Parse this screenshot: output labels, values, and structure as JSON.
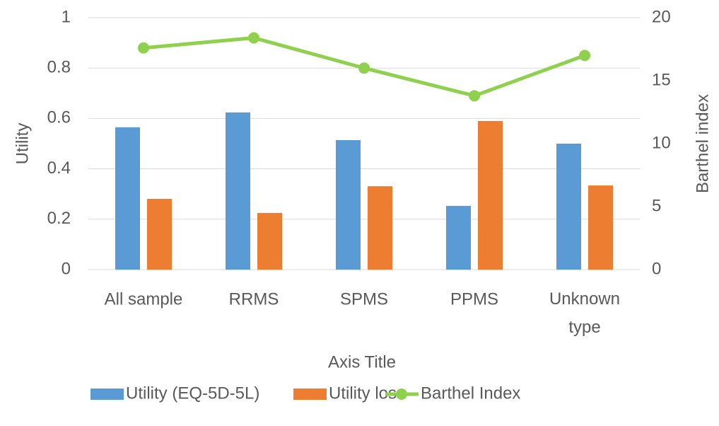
{
  "chart_data": {
    "type": "bar_line",
    "categories": [
      "All sample",
      "RRMS",
      "SPMS",
      "PPMS",
      "Unknown type"
    ],
    "series": [
      {
        "name": "Utility (EQ-5D-5L)",
        "type": "bar",
        "color": "#5b9bd5",
        "values": [
          0.565,
          0.624,
          0.514,
          0.253,
          0.5
        ]
      },
      {
        "name": "Utility loss",
        "type": "bar",
        "color": "#ed7d31",
        "values": [
          0.281,
          0.225,
          0.331,
          0.59,
          0.334
        ]
      },
      {
        "name": "Barthel Index",
        "type": "line",
        "axis": "y2",
        "color": "#8fd14f",
        "values": [
          17.6,
          18.4,
          16.0,
          13.8,
          17.0
        ]
      }
    ],
    "ylabel": "Utility",
    "y2label": "Barthel index",
    "xlabel": "Axis Title",
    "ylim": [
      0,
      1
    ],
    "yticks": [
      0,
      0.2,
      0.4,
      0.6,
      0.8,
      1
    ],
    "y2lim": [
      0,
      20
    ],
    "y2ticks": [
      0,
      5,
      10,
      15,
      20
    ],
    "grid": true,
    "legend": "bottom"
  }
}
